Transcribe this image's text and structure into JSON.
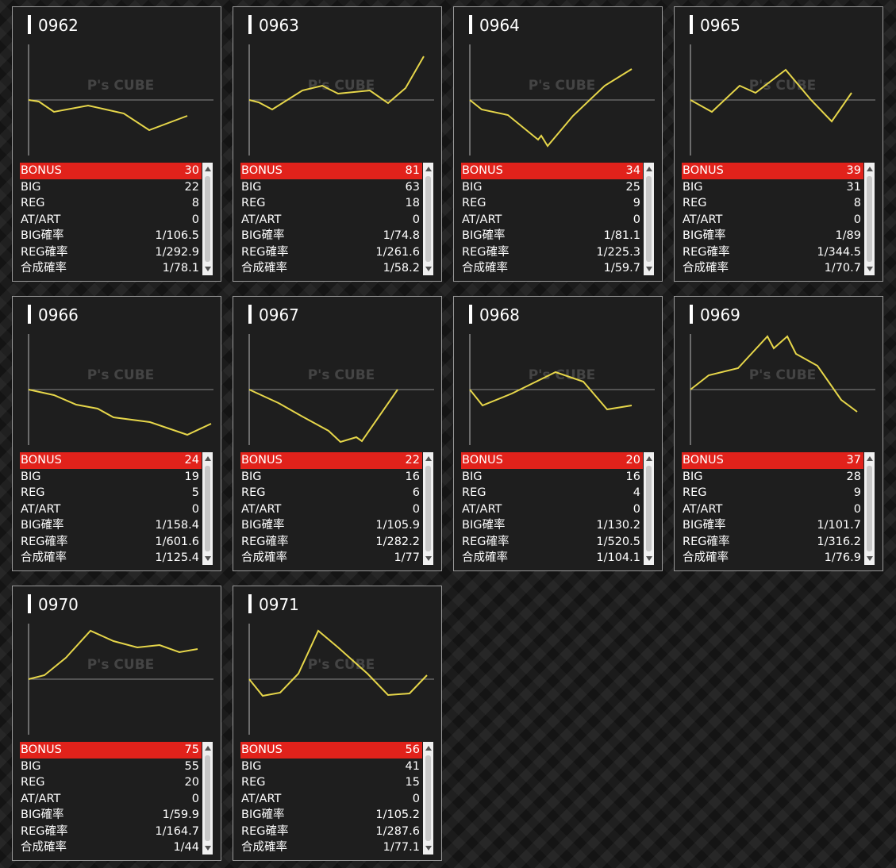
{
  "watermark": "P's CUBE",
  "graph_xlim": [
    0,
    233
  ],
  "graph_ylim": [
    -70,
    70
  ],
  "cards": [
    {
      "id": "0962",
      "graph": {
        "x": [
          0,
          13,
          32,
          75,
          120,
          152,
          200
        ],
        "y": [
          0,
          -2,
          -15,
          -7,
          -17,
          -38,
          -20
        ]
      },
      "rows": [
        [
          "BONUS",
          "30"
        ],
        [
          "BIG",
          "22"
        ],
        [
          "REG",
          "8"
        ],
        [
          "AT/ART",
          "0"
        ],
        [
          "BIG確率",
          "1/106.5"
        ],
        [
          "REG確率",
          "1/292.9"
        ],
        [
          "合成確率",
          "1/78.1"
        ]
      ]
    },
    {
      "id": "0963",
      "graph": {
        "x": [
          0,
          12,
          29,
          67,
          92,
          112,
          152,
          175,
          197,
          220
        ],
        "y": [
          0,
          -3,
          -12,
          12,
          18,
          8,
          12,
          -4,
          15,
          55
        ]
      },
      "rows": [
        [
          "BONUS",
          "81"
        ],
        [
          "BIG",
          "63"
        ],
        [
          "REG",
          "18"
        ],
        [
          "AT/ART",
          "0"
        ],
        [
          "BIG確率",
          "1/74.8"
        ],
        [
          "REG確率",
          "1/261.6"
        ],
        [
          "合成確率",
          "1/58.2"
        ]
      ]
    },
    {
      "id": "0964",
      "graph": {
        "x": [
          0,
          15,
          48,
          86,
          90,
          98,
          130,
          170,
          204
        ],
        "y": [
          0,
          -12,
          -19,
          -50,
          -45,
          -58,
          -20,
          18,
          39
        ]
      },
      "rows": [
        [
          "BONUS",
          "34"
        ],
        [
          "BIG",
          "25"
        ],
        [
          "REG",
          "9"
        ],
        [
          "AT/ART",
          "0"
        ],
        [
          "BIG確率",
          "1/81.1"
        ],
        [
          "REG確率",
          "1/225.3"
        ],
        [
          "合成確率",
          "1/59.7"
        ]
      ]
    },
    {
      "id": "0965",
      "graph": {
        "x": [
          0,
          27,
          62,
          82,
          120,
          152,
          178,
          203
        ],
        "y": [
          0,
          -15,
          18,
          9,
          38,
          0,
          -27,
          9
        ]
      },
      "rows": [
        [
          "BONUS",
          "39"
        ],
        [
          "BIG",
          "31"
        ],
        [
          "REG",
          "8"
        ],
        [
          "AT/ART",
          "0"
        ],
        [
          "BIG確率",
          "1/89"
        ],
        [
          "REG確率",
          "1/344.5"
        ],
        [
          "合成確率",
          "1/70.7"
        ]
      ]
    },
    {
      "id": "0966",
      "graph": {
        "x": [
          0,
          32,
          60,
          87,
          107,
          153,
          200,
          230
        ],
        "y": [
          0,
          -7,
          -19,
          -24,
          -35,
          -41,
          -57,
          -43
        ]
      },
      "rows": [
        [
          "BONUS",
          "24"
        ],
        [
          "BIG",
          "19"
        ],
        [
          "REG",
          "5"
        ],
        [
          "AT/ART",
          "0"
        ],
        [
          "BIG確率",
          "1/158.4"
        ],
        [
          "REG確率",
          "1/601.6"
        ],
        [
          "合成確率",
          "1/125.4"
        ]
      ]
    },
    {
      "id": "0967",
      "graph": {
        "x": [
          0,
          37,
          67,
          100,
          115,
          135,
          142,
          187
        ],
        "y": [
          0,
          -17,
          -34,
          -52,
          -66,
          -60,
          -65,
          0
        ]
      },
      "rows": [
        [
          "BONUS",
          "22"
        ],
        [
          "BIG",
          "16"
        ],
        [
          "REG",
          "6"
        ],
        [
          "AT/ART",
          "0"
        ],
        [
          "BIG確率",
          "1/105.9"
        ],
        [
          "REG確率",
          "1/282.2"
        ],
        [
          "合成確率",
          "1/77"
        ]
      ]
    },
    {
      "id": "0968",
      "graph": {
        "x": [
          0,
          16,
          53,
          108,
          143,
          173,
          204
        ],
        "y": [
          0,
          -20,
          -5,
          22,
          10,
          -25,
          -20
        ]
      },
      "rows": [
        [
          "BONUS",
          "20"
        ],
        [
          "BIG",
          "16"
        ],
        [
          "REG",
          "4"
        ],
        [
          "AT/ART",
          "0"
        ],
        [
          "BIG確率",
          "1/130.2"
        ],
        [
          "REG確率",
          "1/520.5"
        ],
        [
          "合成確率",
          "1/104.1"
        ]
      ]
    },
    {
      "id": "0969",
      "graph": {
        "x": [
          0,
          23,
          60,
          97,
          105,
          122,
          133,
          160,
          190,
          210
        ],
        "y": [
          0,
          18,
          27,
          67,
          52,
          67,
          45,
          30,
          -13,
          -28
        ]
      },
      "rows": [
        [
          "BONUS",
          "37"
        ],
        [
          "BIG",
          "28"
        ],
        [
          "REG",
          "9"
        ],
        [
          "AT/ART",
          "0"
        ],
        [
          "BIG確率",
          "1/101.7"
        ],
        [
          "REG確率",
          "1/316.2"
        ],
        [
          "合成確率",
          "1/76.9"
        ]
      ]
    },
    {
      "id": "0970",
      "graph": {
        "x": [
          0,
          20,
          47,
          78,
          107,
          137,
          165,
          190,
          213
        ],
        "y": [
          0,
          5,
          27,
          61,
          48,
          40,
          43,
          34,
          38
        ]
      },
      "rows": [
        [
          "BONUS",
          "75"
        ],
        [
          "BIG",
          "55"
        ],
        [
          "REG",
          "20"
        ],
        [
          "AT/ART",
          "0"
        ],
        [
          "BIG確率",
          "1/59.9"
        ],
        [
          "REG確率",
          "1/164.7"
        ],
        [
          "合成確率",
          "1/44"
        ]
      ]
    },
    {
      "id": "0971",
      "graph": {
        "x": [
          0,
          17,
          39,
          62,
          87,
          112,
          149,
          175,
          202,
          224
        ],
        "y": [
          0,
          -21,
          -17,
          7,
          61,
          40,
          7,
          -20,
          -18,
          5
        ]
      },
      "rows": [
        [
          "BONUS",
          "56"
        ],
        [
          "BIG",
          "41"
        ],
        [
          "REG",
          "15"
        ],
        [
          "AT/ART",
          "0"
        ],
        [
          "BIG確率",
          "1/105.2"
        ],
        [
          "REG確率",
          "1/287.6"
        ],
        [
          "合成確率",
          "1/77.1"
        ]
      ]
    }
  ]
}
